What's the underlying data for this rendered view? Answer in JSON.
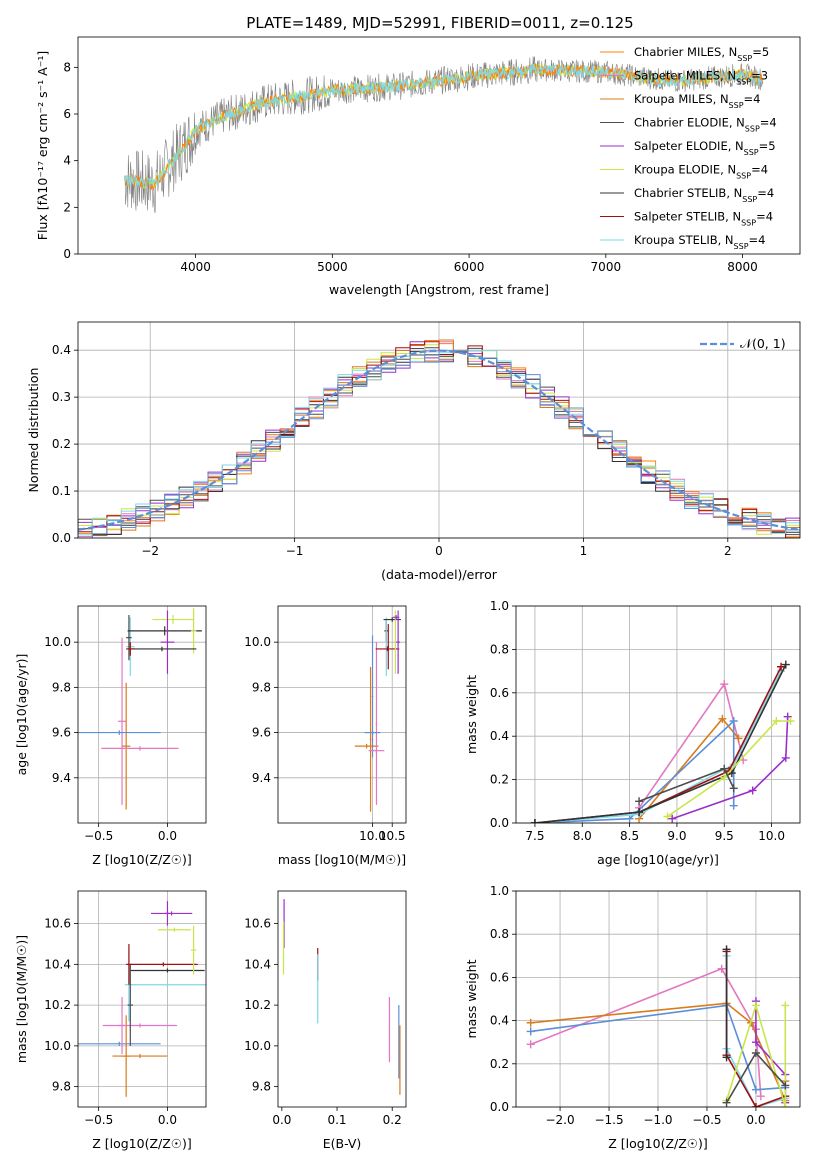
{
  "figure_title": "PLATE=1489, MJD=52991, FIBERID=0011, z=0.125",
  "colors": {
    "Chabrier MILES": "#ff7f0e",
    "Salpeter MILES": "#e377c2",
    "Kroupa MILES": "#d97b1a",
    "Chabrier ELODIE": "#4d4d4d",
    "Salpeter ELODIE": "#9b30c8",
    "Kroupa ELODIE": "#c8e64a",
    "Chabrier STELIB": "#333333",
    "Salpeter STELIB": "#a01010",
    "Kroupa STELIB": "#7fd8e8",
    "gaussian": "#5b8fd9",
    "data": "#808080"
  },
  "chart_data": [
    {
      "id": "spectrum",
      "type": "line",
      "xlabel": "wavelength [Angstrom, rest frame]",
      "ylabel": "Flux [f$_\\lambda$10$^{-17}$ erg cm$^{-2}$ s$^{-1}$ A$^{-1}$]",
      "ylabel_display": "Flux [fλ10⁻¹⁷ erg cm⁻² s⁻¹ A⁻¹]",
      "xlim": [
        3140,
        8420
      ],
      "ylim": [
        0,
        9.3
      ],
      "xticks": [
        4000,
        5000,
        6000,
        7000,
        8000
      ],
      "yticks": [
        0,
        2,
        4,
        6,
        8
      ],
      "legend_position": "upper right",
      "legend": [
        {
          "label": "Chabrier MILES, N",
          "sub": "SSP",
          "n": "=5"
        },
        {
          "label": "Salpeter MILES, N",
          "sub": "SSP",
          "n": "=3"
        },
        {
          "label": "Kroupa MILES, N",
          "sub": "SSP",
          "n": "=4"
        },
        {
          "label": "Chabrier ELODIE, N",
          "sub": "SSP",
          "n": "=4"
        },
        {
          "label": "Salpeter ELODIE, N",
          "sub": "SSP",
          "n": "=5"
        },
        {
          "label": "Kroupa ELODIE, N",
          "sub": "SSP",
          "n": "=4"
        },
        {
          "label": "Chabrier STELIB, N",
          "sub": "SSP",
          "n": "=4"
        },
        {
          "label": "Salpeter STELIB, N",
          "sub": "SSP",
          "n": "=4"
        },
        {
          "label": "Kroupa STELIB, N",
          "sub": "SSP",
          "n": "=4"
        }
      ],
      "continuum": {
        "x": [
          3480,
          3700,
          3900,
          4000,
          4200,
          4500,
          5000,
          5500,
          6000,
          6500,
          7000,
          7500,
          8000,
          8150
        ],
        "y": [
          3.2,
          3.0,
          4.5,
          5.3,
          5.9,
          6.5,
          7.0,
          7.2,
          7.6,
          7.9,
          7.8,
          7.4,
          7.7,
          7.5
        ]
      }
    },
    {
      "id": "residuals",
      "type": "histogram",
      "xlabel": "(data-model)/error",
      "ylabel": "Normed distribution",
      "xlim": [
        -2.5,
        2.5
      ],
      "ylim": [
        0,
        0.46
      ],
      "xticks": [
        -2,
        -1,
        0,
        1,
        2
      ],
      "xtick_labels": [
        "−2",
        "−1",
        "0",
        "1",
        "2"
      ],
      "yticks": [
        0,
        0.1,
        0.2,
        0.3,
        0.4
      ],
      "ytick_labels": [
        "0.0",
        "0.1",
        "0.2",
        "0.3",
        "0.4"
      ],
      "grid": true,
      "bin_width": 0.1,
      "legend": [
        {
          "label": "𝒩(0, 1)",
          "style": "dashed"
        }
      ],
      "legend_position": "upper right"
    },
    {
      "id": "age_vs_Z",
      "type": "errorbar",
      "xlabel": "Z [log10(Z/Z☉)]",
      "ylabel": "age  [log10(age/yr)]",
      "xlim": [
        -0.65,
        0.28
      ],
      "ylim": [
        9.2,
        10.16
      ],
      "xticks": [
        -0.5,
        0.0
      ],
      "xtick_labels": [
        "−0.5",
        "0.0"
      ],
      "yticks": [
        9.4,
        9.6,
        9.8,
        10.0
      ],
      "yticks_labels": [
        "9.4",
        "9.6",
        "9.8",
        "10.0"
      ],
      "grid": true,
      "points": [
        {
          "model": "Kroupa STELIB",
          "x": -0.27,
          "xerr": 0.03,
          "y": 9.98,
          "yerr": 0.13
        },
        {
          "model": "Chabrier ELODIE",
          "x": -0.28,
          "xerr": 0.02,
          "y": 10.02,
          "yerr": 0.1
        },
        {
          "model": "Chabrier STELIB",
          "x": -0.02,
          "xerr": 0.27,
          "y": 10.05,
          "yerr": 0.02
        },
        {
          "model": "Kroupa ELODIE",
          "x": 0.04,
          "xerr": 0.15,
          "y": 10.1,
          "yerr": 0.02
        },
        {
          "model": "Salpeter ELODIE",
          "x": 0.0,
          "xerr": 0.05,
          "y": 10.0,
          "yerr": 0.14
        },
        {
          "model": "Kroupa ELODIE",
          "x": 0.19,
          "xerr": 0.02,
          "y": 10.05,
          "yerr": 0.1
        },
        {
          "model": "Chabrier STELIB",
          "x": -0.04,
          "xerr": 0.25,
          "y": 9.97,
          "yerr": 0.01
        },
        {
          "model": "Salpeter STELIB",
          "x": -0.27,
          "xerr": 0.03,
          "y": 9.97,
          "yerr": 0.03
        },
        {
          "model": "Salpeter MILES",
          "x": -0.33,
          "xerr": 0.03,
          "y": 9.65,
          "yerr": 0.37
        },
        {
          "model": "Kroupa MILES",
          "x": -0.3,
          "xerr": 0.03,
          "y": 9.54,
          "yerr": 0.28
        },
        {
          "model": "Salpeter MILES",
          "x": -0.2,
          "xerr": 0.28,
          "y": 9.53,
          "yerr": 0.01
        },
        {
          "model": "gaussian",
          "x": -0.35,
          "xerr": 0.3,
          "y": 9.6,
          "yerr": 0.01
        }
      ]
    },
    {
      "id": "age_vs_mass",
      "type": "errorbar",
      "xlabel": "mass [log10(M/M☉)]",
      "xlim": [
        7.6,
        10.85
      ],
      "ylim": [
        9.2,
        10.16
      ],
      "xticks": [
        10.0,
        10.5
      ],
      "xtick_labels": [
        "10.0",
        "10.5"
      ],
      "yticks": [
        9.4,
        9.6,
        9.8,
        10.0
      ],
      "yticks_labels": [
        "9.4",
        "9.6",
        "9.8",
        "10.0"
      ],
      "grid": true,
      "points": [
        {
          "model": "gaussian",
          "x": 10.0,
          "xerr": 0.02,
          "y": 9.76,
          "yerr": 0.27
        },
        {
          "model": "Kroupa MILES",
          "x": 9.95,
          "xerr": 0.02,
          "y": 9.57,
          "yerr": 0.32
        },
        {
          "model": "Kroupa MILES",
          "x": 9.85,
          "xerr": 0.3,
          "y": 9.54,
          "yerr": 0.01
        },
        {
          "model": "Salpeter MILES",
          "x": 10.1,
          "xerr": 0.02,
          "y": 9.64,
          "yerr": 0.36
        },
        {
          "model": "Salpeter MILES",
          "x": 10.1,
          "xerr": 0.2,
          "y": 9.52,
          "yerr": 0.01
        },
        {
          "model": "gaussian",
          "x": 10.0,
          "xerr": 0.2,
          "y": 9.6,
          "yerr": 0.01
        },
        {
          "model": "Chabrier STELIB",
          "x": 10.35,
          "xerr": 0.05,
          "y": 10.05,
          "yerr": 0.05
        },
        {
          "model": "Kroupa STELIB",
          "x": 10.35,
          "xerr": 0.03,
          "y": 9.98,
          "yerr": 0.13
        },
        {
          "model": "Salpeter STELIB",
          "x": 10.38,
          "xerr": 0.3,
          "y": 9.97,
          "yerr": 0.01
        },
        {
          "model": "Salpeter STELIB",
          "x": 10.4,
          "xerr": 0.02,
          "y": 9.98,
          "yerr": 0.1
        },
        {
          "model": "Chabrier STELIB",
          "x": 10.5,
          "xerr": 0.22,
          "y": 10.1,
          "yerr": 0.01
        },
        {
          "model": "Kroupa ELODIE",
          "x": 10.58,
          "xerr": 0.02,
          "y": 10.0,
          "yerr": 0.14
        },
        {
          "model": "Salpeter ELODIE",
          "x": 10.65,
          "xerr": 0.05,
          "y": 10.0,
          "yerr": 0.14
        },
        {
          "model": "Salpeter ELODIE",
          "x": 10.6,
          "xerr": 0.08,
          "y": 10.11,
          "yerr": 0.01
        }
      ]
    },
    {
      "id": "massweight_vs_age",
      "type": "line",
      "xlabel": "age  [log10(age/yr)]",
      "ylabel": "mass weight",
      "xlim": [
        7.3,
        10.3
      ],
      "ylim": [
        0,
        1
      ],
      "xticks": [
        7.5,
        8.0,
        8.5,
        9.0,
        9.5,
        10.0
      ],
      "xtick_labels": [
        "7.5",
        "8.0",
        "8.5",
        "9.0",
        "9.5",
        "10.0"
      ],
      "yticks": [
        0,
        0.2,
        0.4,
        0.6,
        0.8,
        1.0
      ],
      "ytick_labels": [
        "0.0",
        "0.2",
        "0.4",
        "0.6",
        "0.8",
        "1.0"
      ],
      "grid": true,
      "series": [
        {
          "model": "Salpeter MILES",
          "x": [
            8.6,
            9.5,
            9.7
          ],
          "y": [
            0.07,
            0.64,
            0.29
          ]
        },
        {
          "model": "Kroupa MILES",
          "x": [
            8.6,
            9.48,
            9.65
          ],
          "y": [
            0.02,
            0.48,
            0.39
          ]
        },
        {
          "model": "gaussian",
          "x": [
            7.5,
            8.5,
            9.6,
            9.6
          ],
          "y": [
            0.0,
            0.02,
            0.47,
            0.08
          ]
        },
        {
          "model": "Kroupa STELIB",
          "x": [
            7.5,
            8.6,
            9.6,
            10.1
          ],
          "y": [
            0.0,
            0.04,
            0.27,
            0.7
          ]
        },
        {
          "model": "Salpeter STELIB",
          "x": [
            7.5,
            8.6,
            9.55,
            10.1
          ],
          "y": [
            0.0,
            0.05,
            0.24,
            0.72
          ]
        },
        {
          "model": "Chabrier STELIB",
          "x": [
            7.5,
            8.6,
            9.58,
            10.15
          ],
          "y": [
            0.0,
            0.05,
            0.23,
            0.73
          ]
        },
        {
          "model": "Salpeter ELODIE",
          "x": [
            8.95,
            9.8,
            10.15,
            10.17
          ],
          "y": [
            0.02,
            0.15,
            0.3,
            0.49
          ]
        },
        {
          "model": "Kroupa ELODIE",
          "x": [
            8.9,
            9.5,
            10.05,
            10.2
          ],
          "y": [
            0.03,
            0.21,
            0.47,
            0.47
          ]
        },
        {
          "model": "Chabrier ELODIE",
          "x": [
            8.6,
            9.5,
            9.6
          ],
          "y": [
            0.1,
            0.25,
            0.16
          ]
        }
      ]
    },
    {
      "id": "mass_vs_Z",
      "type": "errorbar",
      "xlabel": "Z [log10(Z/Z☉)]",
      "ylabel": "mass [log10(M/M☉)]",
      "xlim": [
        -0.65,
        0.28
      ],
      "ylim": [
        9.7,
        10.76
      ],
      "xticks": [
        -0.5,
        0.0
      ],
      "xtick_labels": [
        "−0.5",
        "0.0"
      ],
      "yticks": [
        9.8,
        10.0,
        10.2,
        10.4,
        10.6
      ],
      "yticks_labels": [
        "9.8",
        "10.0",
        "10.2",
        "10.4",
        "10.6"
      ],
      "grid": true,
      "points": [
        {
          "model": "gaussian",
          "x": -0.35,
          "xerr": 0.3,
          "y": 10.01,
          "yerr": 0.01
        },
        {
          "model": "Kroupa MILES",
          "x": -0.3,
          "xerr": 0.03,
          "y": 9.95,
          "yerr": 0.2
        },
        {
          "model": "Kroupa MILES",
          "x": -0.2,
          "xerr": 0.2,
          "y": 9.95,
          "yerr": 0.01
        },
        {
          "model": "Salpeter MILES",
          "x": -0.33,
          "xerr": 0.03,
          "y": 10.1,
          "yerr": 0.14
        },
        {
          "model": "Salpeter MILES",
          "x": -0.2,
          "xerr": 0.27,
          "y": 10.1,
          "yerr": 0.01
        },
        {
          "model": "Kroupa STELIB",
          "x": -0.28,
          "xerr": 0.03,
          "y": 10.3,
          "yerr": 0.18
        },
        {
          "model": "Kroupa STELIB",
          "x": -0.0,
          "xerr": 0.28,
          "y": 10.3,
          "yerr": 0.01
        },
        {
          "model": "Salpeter STELIB",
          "x": -0.28,
          "xerr": 0.02,
          "y": 10.4,
          "yerr": 0.1
        },
        {
          "model": "Salpeter STELIB",
          "x": -0.03,
          "xerr": 0.25,
          "y": 10.4,
          "yerr": 0.01
        },
        {
          "model": "Chabrier STELIB",
          "x": 0.0,
          "xerr": 0.27,
          "y": 10.37,
          "yerr": 0.01
        },
        {
          "model": "Kroupa ELODIE",
          "x": 0.19,
          "xerr": 0.02,
          "y": 10.47,
          "yerr": 0.12
        },
        {
          "model": "Kroupa ELODIE",
          "x": 0.05,
          "xerr": 0.12,
          "y": 10.57,
          "yerr": 0.01
        },
        {
          "model": "Salpeter ELODIE",
          "x": 0.03,
          "xerr": 0.15,
          "y": 10.65,
          "yerr": 0.01
        },
        {
          "model": "Salpeter ELODIE",
          "x": 0.0,
          "xerr": 0.02,
          "y": 10.65,
          "yerr": 0.06
        },
        {
          "model": "Chabrier ELODIE",
          "x": -0.27,
          "xerr": 0.02,
          "y": 10.2,
          "yerr": 0.2
        }
      ]
    },
    {
      "id": "mass_vs_ebv",
      "type": "errorbar",
      "xlabel": "E(B-V)",
      "xlim": [
        -0.007,
        0.225
      ],
      "ylim": [
        9.7,
        10.76
      ],
      "xticks": [
        0.0,
        0.1,
        0.2
      ],
      "xtick_labels": [
        "0.0",
        "0.1",
        "0.2"
      ],
      "yticks": [
        9.8,
        10.0,
        10.2,
        10.4,
        10.6
      ],
      "yticks_labels": [
        "9.8",
        "10.0",
        "10.2",
        "10.4",
        "10.6"
      ],
      "points": [
        {
          "model": "Salpeter ELODIE",
          "x": 0.004,
          "xerr": 0.0,
          "y": 10.6,
          "yerr": 0.12
        },
        {
          "model": "Kroupa ELODIE",
          "x": 0.003,
          "xerr": 0.0,
          "y": 10.48,
          "yerr": 0.13
        },
        {
          "model": "Salpeter STELIB",
          "x": 0.065,
          "xerr": 0.0,
          "y": 10.4,
          "yerr": 0.08
        },
        {
          "model": "Kroupa STELIB",
          "x": 0.065,
          "xerr": 0.0,
          "y": 10.28,
          "yerr": 0.17
        },
        {
          "model": "Salpeter MILES",
          "x": 0.195,
          "xerr": 0.0,
          "y": 10.08,
          "yerr": 0.16
        },
        {
          "model": "gaussian",
          "x": 0.212,
          "xerr": 0.0,
          "y": 10.02,
          "yerr": 0.18
        },
        {
          "model": "Kroupa MILES",
          "x": 0.214,
          "xerr": 0.0,
          "y": 9.93,
          "yerr": 0.17
        }
      ]
    },
    {
      "id": "massweight_vs_Z",
      "type": "line",
      "xlabel": "Z [log10(Z/Z☉)]",
      "ylabel": "mass weight",
      "xlim": [
        -2.45,
        0.45
      ],
      "ylim": [
        0,
        1
      ],
      "xticks": [
        -2.0,
        -1.5,
        -1.0,
        -0.5,
        0.0
      ],
      "xtick_labels": [
        "−2.0",
        "−1.5",
        "−1.0",
        "−0.5",
        "0.0"
      ],
      "yticks": [
        0,
        0.2,
        0.4,
        0.6,
        0.8,
        1.0
      ],
      "ytick_labels": [
        "0.0",
        "0.2",
        "0.4",
        "0.6",
        "0.8",
        "1.0"
      ],
      "grid": true,
      "series": [
        {
          "model": "Salpeter MILES",
          "x": [
            -2.3,
            -0.35,
            0.0,
            0.05
          ],
          "y": [
            0.29,
            0.64,
            0.36,
            0.05
          ]
        },
        {
          "model": "Kroupa MILES",
          "x": [
            -2.3,
            -0.3,
            -0.05,
            0.3,
            0.3
          ],
          "y": [
            0.39,
            0.48,
            0.39,
            0.03,
            0.12
          ]
        },
        {
          "model": "gaussian",
          "x": [
            -2.3,
            -0.3,
            0.0,
            0.3
          ],
          "y": [
            0.35,
            0.47,
            0.08,
            0.09
          ]
        },
        {
          "model": "Kroupa STELIB",
          "x": [
            -0.3,
            -0.3,
            0.0,
            0.3
          ],
          "y": [
            0.7,
            0.27,
            0.0,
            0.04
          ]
        },
        {
          "model": "Salpeter STELIB",
          "x": [
            -0.3,
            -0.3,
            0.0,
            0.3
          ],
          "y": [
            0.72,
            0.24,
            0.0,
            0.05
          ]
        },
        {
          "model": "Chabrier STELIB",
          "x": [
            -0.3,
            -0.3
          ],
          "y": [
            0.73,
            0.23
          ]
        },
        {
          "model": "Salpeter ELODIE",
          "x": [
            0.0,
            0.0,
            0.3,
            0.3
          ],
          "y": [
            0.49,
            0.3,
            0.15,
            0.02
          ]
        },
        {
          "model": "Kroupa ELODIE",
          "x": [
            -0.3,
            0.0,
            0.3,
            0.3
          ],
          "y": [
            0.03,
            0.47,
            0.0,
            0.47
          ]
        },
        {
          "model": "Chabrier ELODIE",
          "x": [
            -0.3,
            0.0,
            0.3
          ],
          "y": [
            0.02,
            0.25,
            0.1
          ]
        }
      ]
    }
  ]
}
